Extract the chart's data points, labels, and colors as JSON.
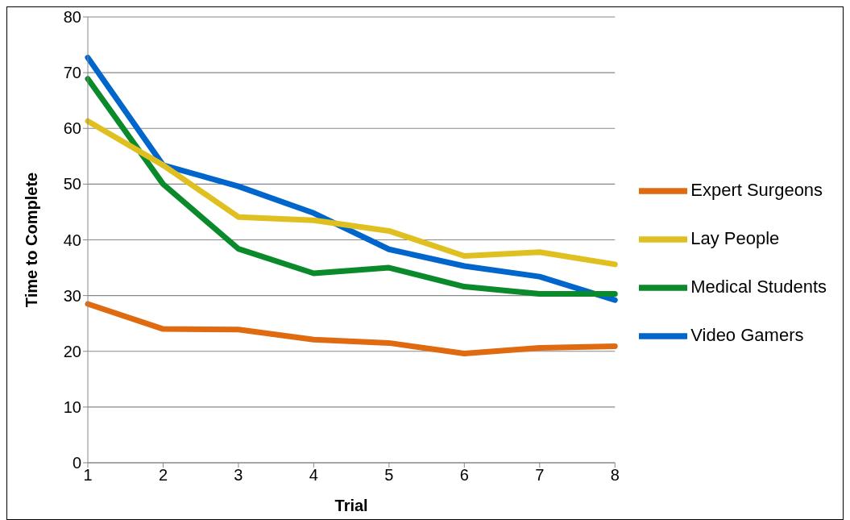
{
  "chart_data": {
    "type": "line",
    "xlabel": "Trial",
    "ylabel": "Time to Complete",
    "categories": [
      "1",
      "2",
      "3",
      "4",
      "5",
      "6",
      "7",
      "8"
    ],
    "series": [
      {
        "name": "Video Gamers",
        "color": "#0066cc",
        "values": [
          72.7,
          53.4,
          49.6,
          44.8,
          38.3,
          35.3,
          33.4,
          29.2
        ]
      },
      {
        "name": "Medical Students",
        "color": "#0a8a2a",
        "values": [
          68.9,
          50.0,
          38.4,
          34.0,
          35.0,
          31.6,
          30.3,
          30.3
        ]
      },
      {
        "name": "Lay People",
        "color": "#e0c020",
        "values": [
          61.3,
          53.4,
          44.1,
          43.5,
          41.6,
          37.1,
          37.8,
          35.6
        ]
      },
      {
        "name": "Expert Surgeons",
        "color": "#e06a10",
        "values": [
          28.5,
          24.0,
          23.9,
          22.1,
          21.5,
          19.6,
          20.6,
          20.9
        ]
      }
    ],
    "ylim": [
      0,
      80
    ],
    "yticks": [
      0,
      10,
      20,
      30,
      40,
      50,
      60,
      70,
      80
    ],
    "grid": "y",
    "legend": "right",
    "marker": "none",
    "line_style": "solid"
  }
}
